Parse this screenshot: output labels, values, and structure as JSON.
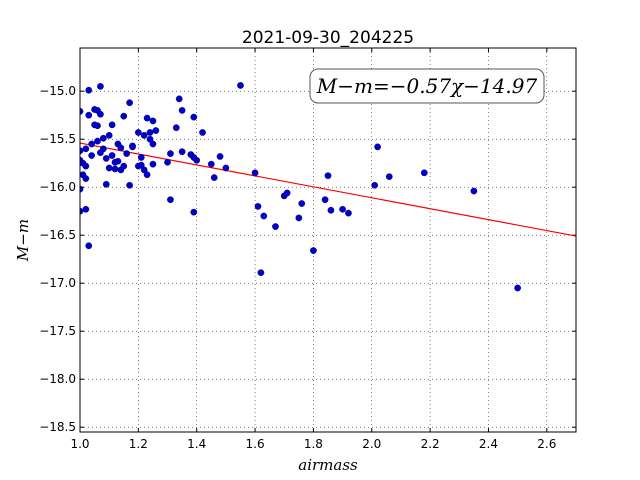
{
  "chart_data": {
    "type": "scatter",
    "title": "2021-09-30_204225",
    "xlabel": "airmass",
    "ylabel": "M−m",
    "annotation": "M−m=−0.57χ−14.97",
    "xlim": [
      1.0,
      2.7
    ],
    "ylim": [
      -18.55,
      -14.55
    ],
    "y_inverted": true,
    "grid": true,
    "x_ticks": [
      1.0,
      1.2,
      1.4,
      1.6,
      1.8,
      2.0,
      2.2,
      2.4,
      2.6
    ],
    "x_tick_labels": [
      "1.0",
      "1.2",
      "1.4",
      "1.6",
      "1.8",
      "2.0",
      "2.2",
      "2.4",
      "2.6"
    ],
    "y_ticks": [
      -15.0,
      -15.5,
      -16.0,
      -16.5,
      -17.0,
      -17.5,
      -18.0,
      -18.5
    ],
    "y_tick_labels": [
      "−15.0",
      "−15.5",
      "−16.0",
      "−16.5",
      "−17.0",
      "−17.5",
      "−18.0",
      "−18.5"
    ],
    "series": [
      {
        "marker_color": "#0000cc",
        "points": [
          [
            1.0,
            -15.62
          ],
          [
            1.0,
            -15.72
          ],
          [
            1.0,
            -16.02
          ],
          [
            1.0,
            -16.25
          ],
          [
            1.0,
            -15.21
          ],
          [
            1.01,
            -15.75
          ],
          [
            1.01,
            -15.87
          ],
          [
            1.02,
            -15.91
          ],
          [
            1.02,
            -15.78
          ],
          [
            1.02,
            -15.6
          ],
          [
            1.02,
            -16.23
          ],
          [
            1.03,
            -14.99
          ],
          [
            1.03,
            -15.25
          ],
          [
            1.03,
            -16.61
          ],
          [
            1.04,
            -15.67
          ],
          [
            1.04,
            -15.55
          ],
          [
            1.05,
            -15.19
          ],
          [
            1.05,
            -15.35
          ],
          [
            1.06,
            -15.2
          ],
          [
            1.06,
            -15.36
          ],
          [
            1.06,
            -15.52
          ],
          [
            1.07,
            -15.64
          ],
          [
            1.07,
            -15.24
          ],
          [
            1.07,
            -14.95
          ],
          [
            1.08,
            -15.6
          ],
          [
            1.08,
            -15.49
          ],
          [
            1.09,
            -15.7
          ],
          [
            1.09,
            -15.97
          ],
          [
            1.1,
            -15.46
          ],
          [
            1.1,
            -15.8
          ],
          [
            1.11,
            -15.35
          ],
          [
            1.11,
            -15.67
          ],
          [
            1.12,
            -15.74
          ],
          [
            1.12,
            -15.81
          ],
          [
            1.13,
            -15.73
          ],
          [
            1.13,
            -15.55
          ],
          [
            1.14,
            -15.59
          ],
          [
            1.14,
            -15.82
          ],
          [
            1.15,
            -15.26
          ],
          [
            1.15,
            -15.78
          ],
          [
            1.16,
            -15.65
          ],
          [
            1.17,
            -15.98
          ],
          [
            1.17,
            -15.12
          ],
          [
            1.18,
            -15.58
          ],
          [
            1.18,
            -15.57
          ],
          [
            1.2,
            -15.43
          ],
          [
            1.2,
            -15.78
          ],
          [
            1.21,
            -15.69
          ],
          [
            1.21,
            -15.77
          ],
          [
            1.22,
            -15.82
          ],
          [
            1.22,
            -15.46
          ],
          [
            1.23,
            -15.28
          ],
          [
            1.23,
            -15.87
          ],
          [
            1.24,
            -15.43
          ],
          [
            1.24,
            -15.5
          ],
          [
            1.25,
            -15.31
          ],
          [
            1.25,
            -15.55
          ],
          [
            1.25,
            -15.76
          ],
          [
            1.26,
            -15.41
          ],
          [
            1.3,
            -15.74
          ],
          [
            1.31,
            -15.65
          ],
          [
            1.31,
            -16.13
          ],
          [
            1.33,
            -15.38
          ],
          [
            1.34,
            -15.08
          ],
          [
            1.35,
            -15.63
          ],
          [
            1.35,
            -15.2
          ],
          [
            1.38,
            -15.66
          ],
          [
            1.39,
            -15.27
          ],
          [
            1.39,
            -15.69
          ],
          [
            1.39,
            -16.26
          ],
          [
            1.4,
            -15.72
          ],
          [
            1.42,
            -15.43
          ],
          [
            1.45,
            -15.76
          ],
          [
            1.46,
            -15.9
          ],
          [
            1.48,
            -15.68
          ],
          [
            1.5,
            -15.8
          ],
          [
            1.55,
            -14.94
          ],
          [
            1.6,
            -15.85
          ],
          [
            1.61,
            -16.2
          ],
          [
            1.62,
            -16.89
          ],
          [
            1.63,
            -16.3
          ],
          [
            1.67,
            -16.41
          ],
          [
            1.7,
            -16.09
          ],
          [
            1.71,
            -16.06
          ],
          [
            1.75,
            -16.32
          ],
          [
            1.76,
            -16.17
          ],
          [
            1.8,
            -16.66
          ],
          [
            1.84,
            -16.13
          ],
          [
            1.85,
            -15.88
          ],
          [
            1.86,
            -16.24
          ],
          [
            1.9,
            -16.23
          ],
          [
            1.92,
            -16.27
          ],
          [
            2.01,
            -15.98
          ],
          [
            2.02,
            -15.58
          ],
          [
            2.06,
            -15.89
          ],
          [
            2.18,
            -15.85
          ],
          [
            2.35,
            -16.04
          ],
          [
            2.5,
            -17.05
          ]
        ]
      }
    ],
    "fit_line": {
      "color": "#ff0000",
      "slope": -0.57,
      "intercept": -14.97,
      "x_range": [
        1.0,
        2.7
      ]
    }
  }
}
